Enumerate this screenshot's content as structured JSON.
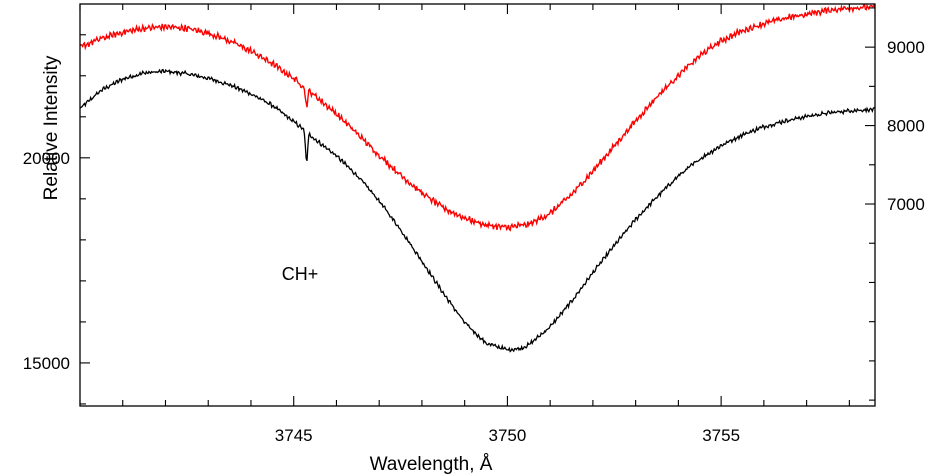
{
  "chart_data": {
    "type": "line",
    "title": "",
    "xlabel": "Wavelength, Å",
    "ylabel": "Relative Intensity",
    "xlim": [
      3740.0,
      3758.6
    ],
    "x_ticks": [
      3745,
      3750,
      3755
    ],
    "x_tick_labels": [
      "3745",
      "3750",
      "3755"
    ],
    "y_left": {
      "lim": [
        13950,
        23750
      ],
      "ticks": [
        15000,
        20000
      ],
      "tick_labels": [
        "15000",
        "20000"
      ]
    },
    "y_right": {
      "lim": [
        4425,
        9550
      ],
      "ticks": [
        7000,
        8000,
        9000
      ],
      "tick_labels": [
        "7000",
        "8000",
        "9000"
      ]
    },
    "grid": false,
    "series": [
      {
        "axis": "left",
        "color": "#000000",
        "x": [
          3740.0,
          3740.5,
          3741.0,
          3741.5,
          3742.0,
          3742.5,
          3743.0,
          3743.5,
          3744.0,
          3744.5,
          3745.0,
          3745.3,
          3745.5,
          3746.0,
          3746.5,
          3747.0,
          3747.5,
          3748.0,
          3748.5,
          3749.0,
          3749.5,
          3750.0,
          3750.3,
          3750.5,
          3751.0,
          3751.5,
          3752.0,
          3752.5,
          3753.0,
          3753.5,
          3754.0,
          3754.5,
          3755.0,
          3755.5,
          3756.0,
          3756.5,
          3757.0,
          3757.5,
          3758.0,
          3758.6
        ],
        "y": [
          21200,
          21650,
          21920,
          22070,
          22110,
          22050,
          21940,
          21780,
          21560,
          21280,
          20880,
          20640,
          20450,
          20050,
          19550,
          18950,
          18250,
          17480,
          16700,
          15980,
          15480,
          15320,
          15350,
          15440,
          15880,
          16500,
          17200,
          17860,
          18500,
          19050,
          19560,
          19970,
          20300,
          20560,
          20760,
          20900,
          21010,
          21090,
          21150,
          21180
        ],
        "dips": [
          {
            "x": 3745.3,
            "depth": 750
          }
        ]
      },
      {
        "axis": "right",
        "color": "#ff0000",
        "x": [
          3740.0,
          3740.5,
          3741.0,
          3741.5,
          3742.0,
          3742.5,
          3743.0,
          3743.5,
          3744.0,
          3744.5,
          3745.0,
          3745.5,
          3746.0,
          3746.5,
          3747.0,
          3747.5,
          3748.0,
          3748.5,
          3749.0,
          3749.5,
          3750.0,
          3750.5,
          3751.0,
          3751.5,
          3752.0,
          3752.5,
          3753.0,
          3753.5,
          3754.0,
          3754.5,
          3755.0,
          3755.5,
          3756.0,
          3756.5,
          3757.0,
          3757.5,
          3758.0,
          3758.6
        ],
        "y": [
          9000,
          9110,
          9190,
          9240,
          9260,
          9240,
          9180,
          9080,
          8950,
          8790,
          8600,
          8380,
          8150,
          7890,
          7620,
          7370,
          7140,
          6950,
          6820,
          6730,
          6700,
          6740,
          6880,
          7120,
          7420,
          7740,
          8060,
          8370,
          8640,
          8890,
          9080,
          9210,
          9300,
          9370,
          9420,
          9470,
          9500,
          9510
        ],
        "dips": [
          {
            "x": 3745.3,
            "depth": 220
          }
        ]
      }
    ],
    "annotations": [
      {
        "text": "CH+",
        "x": 3745.3,
        "y": 19160,
        "axis": "left"
      }
    ]
  }
}
